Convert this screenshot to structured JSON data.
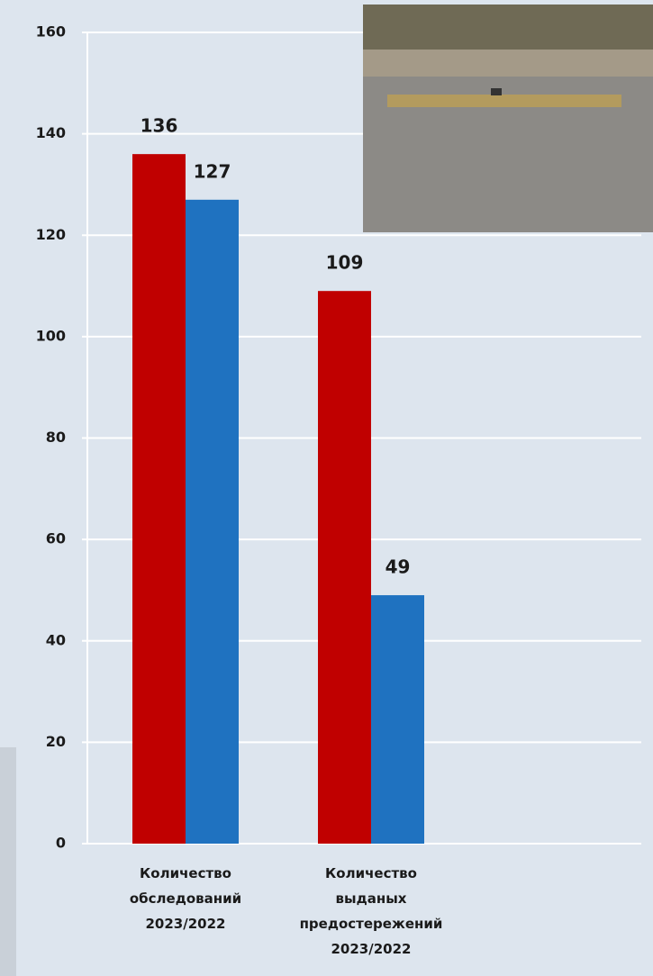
{
  "chart_data": {
    "type": "bar",
    "categories": [
      "Количество\nобследований\n2023/2022",
      "Количество\nвыданых\nпредостережений\n2023/2022"
    ],
    "series": [
      {
        "color": "#c00000",
        "values": [
          136,
          109
        ]
      },
      {
        "color": "#1f72c0",
        "values": [
          127,
          49
        ]
      }
    ],
    "ylim": [
      0,
      160
    ],
    "yticks": [
      0,
      20,
      40,
      60,
      80,
      100,
      120,
      140,
      160
    ],
    "grid": true
  }
}
